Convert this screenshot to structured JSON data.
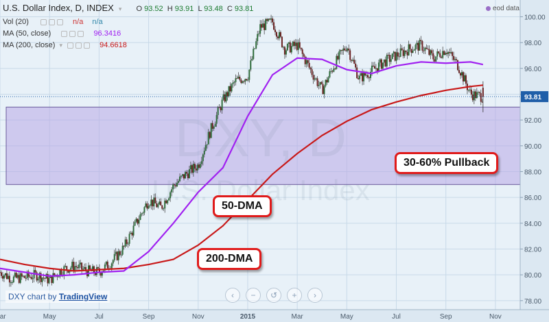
{
  "legend": {
    "title": "U.S. Dollar Index, D, INDEX",
    "ohlc": {
      "o_label": "O",
      "o": "93.52",
      "h_label": "H",
      "h": "93.91",
      "l_label": "L",
      "l": "93.48",
      "c_label": "C",
      "c": "93.81"
    },
    "vol_label": "Vol (20)",
    "vol_value1": "n/a",
    "vol_value2": "n/a",
    "ma50_label": "MA (50, close)",
    "ma50_value": "96.3416",
    "ma200_label": "MA (200, close)",
    "ma200_value": "94.6618"
  },
  "eod_label": "eod data",
  "credit": {
    "prefix": "DXY chart by",
    "link": "TradingView"
  },
  "watermark": {
    "symbol": "DXY, D",
    "name": "U.S. Dollar Index"
  },
  "callouts": {
    "ma50": "50-DMA",
    "ma200": "200-DMA",
    "pullback": "30-60% Pullback"
  },
  "price_label": "93.81",
  "nav_buttons": [
    "‹",
    "−",
    "↺",
    "+",
    "›"
  ],
  "colors": {
    "background": "#e8f1f8",
    "candle_up": "#2e6b3a",
    "candle_down": "#6b2222",
    "ma50": "#a020f0",
    "ma200": "#c81818",
    "zone_fill": "#b8a8e6",
    "callout_border": "#e01a1a",
    "price_tag": "#1f5ea8"
  },
  "chart_data": {
    "type": "line",
    "title": "U.S. Dollar Index, D, INDEX",
    "y_ticks": [
      "78.00",
      "80.00",
      "82.00",
      "84.00",
      "86.00",
      "88.00",
      "90.00",
      "92.00",
      "94.00",
      "96.00",
      "98.00",
      "100.00"
    ],
    "x_ticks": [
      "Mar",
      "May",
      "Jul",
      "Sep",
      "Nov",
      "2015",
      "Mar",
      "May",
      "Jul",
      "Sep",
      "Nov"
    ],
    "ylim": [
      77.3,
      101.3
    ],
    "x_index_range": [
      0,
      21
    ],
    "last_price": 93.81,
    "zone": {
      "y_low": 87.0,
      "y_high": 93.0
    },
    "series": [
      {
        "name": "DXY",
        "x": [
          0,
          0.5,
          1,
          1.5,
          2,
          2.5,
          3,
          3.5,
          4,
          4.5,
          5,
          5.5,
          6,
          6.5,
          7,
          7.5,
          8,
          8.5,
          9,
          9.5,
          10,
          10.5,
          11,
          11.5,
          12,
          12.5,
          13,
          13.5,
          14,
          14.5,
          15,
          15.5,
          16,
          16.5,
          17,
          17.5,
          18,
          18.5,
          19,
          19.5
        ],
        "values": [
          80.2,
          79.7,
          79.8,
          80.0,
          79.6,
          80.4,
          80.7,
          80.3,
          80.2,
          81.0,
          82.1,
          84.0,
          85.8,
          85.2,
          86.9,
          87.8,
          88.5,
          91.2,
          93.5,
          95.0,
          95.4,
          99.2,
          99.6,
          97.5,
          97.8,
          96.0,
          94.3,
          96.3,
          97.8,
          95.2,
          95.8,
          96.5,
          97.0,
          97.5,
          97.8,
          96.8,
          97.5,
          96.2,
          94.0,
          93.81
        ]
      },
      {
        "name": "MA (50, close)",
        "x": [
          0,
          1,
          2,
          3,
          4,
          5,
          6,
          7,
          8,
          9,
          10,
          11,
          12,
          13,
          14,
          15,
          16,
          17,
          18,
          19,
          19.5
        ],
        "values": [
          80.5,
          80.2,
          79.9,
          80.0,
          80.2,
          80.3,
          81.8,
          84.0,
          86.4,
          88.3,
          92.3,
          95.5,
          96.8,
          96.7,
          95.9,
          95.6,
          96.2,
          96.5,
          96.4,
          96.5,
          96.3
        ]
      },
      {
        "name": "MA (200, close)",
        "x": [
          0,
          1,
          2,
          3,
          4,
          5,
          6,
          7,
          8,
          9,
          10,
          11,
          12,
          13,
          14,
          15,
          16,
          17,
          18,
          19,
          19.5
        ],
        "values": [
          81.2,
          80.8,
          80.5,
          80.3,
          80.4,
          80.5,
          80.8,
          81.2,
          82.3,
          83.8,
          85.8,
          87.8,
          89.4,
          90.8,
          91.9,
          92.8,
          93.4,
          93.9,
          94.3,
          94.6,
          94.7
        ]
      }
    ]
  }
}
